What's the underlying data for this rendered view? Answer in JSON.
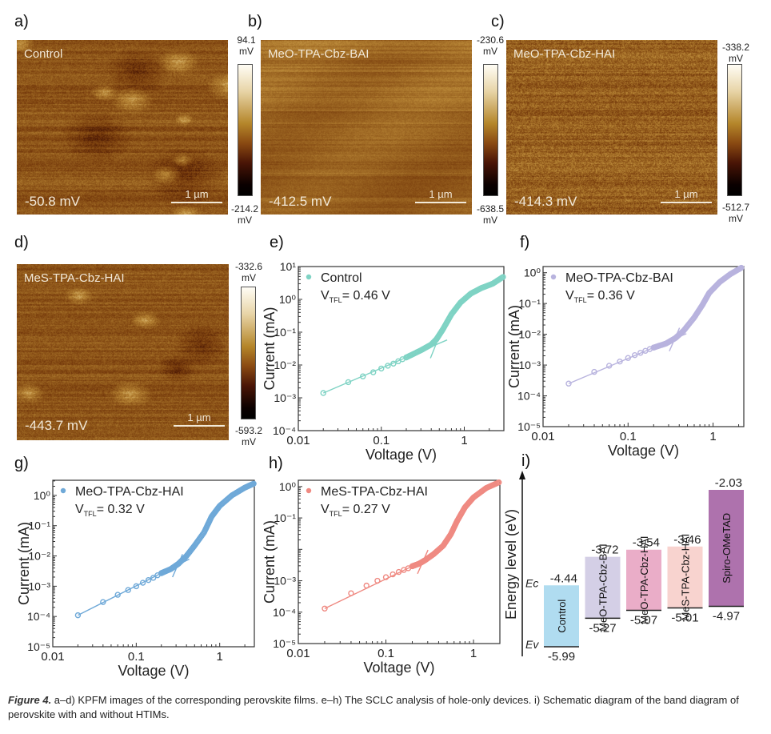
{
  "figure": {
    "caption_title": "Figure 4.",
    "caption_text": " a–d) KPFM images of the corresponding perovskite films. e–h) The SCLC analysis of hole-only devices. i) Schematic diagram of the band diagram of perovskite with and without HTIMs."
  },
  "kpfm": [
    {
      "panel": "a)",
      "sample": "Control",
      "mean_potential": "-50.8 mV",
      "scale_bar": "1 µm",
      "cbar_max": "94.1",
      "cbar_min": "-214.2",
      "unit": "mV"
    },
    {
      "panel": "b)",
      "sample": "MeO-TPA-Cbz-BAI",
      "mean_potential": "-412.5 mV",
      "scale_bar": "1 µm",
      "cbar_max": "-230.6",
      "cbar_min": "-638.5",
      "unit": "mV"
    },
    {
      "panel": "c)",
      "sample": "MeO-TPA-Cbz-HAI",
      "mean_potential": "-414.3 mV",
      "scale_bar": "1 µm",
      "cbar_max": "-338.2",
      "cbar_min": "-512.7",
      "unit": "mV"
    },
    {
      "panel": "d)",
      "sample": "MeS-TPA-Cbz-HAI",
      "mean_potential": "-443.7 mV",
      "scale_bar": "1 µm",
      "cbar_max": "-332.6",
      "cbar_min": "-593.2",
      "unit": "mV"
    }
  ],
  "chart_data": [
    {
      "panel": "e)",
      "type": "scatter",
      "scale": "log-log",
      "legend": "Control",
      "vtfl_label": "V",
      "vtfl_sub": "TFL",
      "vtfl_value": "= 0.46 V",
      "color": "#7fd3c4",
      "xlabel": "Voltage (V)",
      "ylabel": "Current (mA)",
      "xlim": [
        0.01,
        3
      ],
      "ylim_exp": [
        -4,
        1
      ],
      "xticks": [
        "0.01",
        "0.1",
        "1"
      ],
      "yticks_exp": [
        -4,
        -3,
        -2,
        -1,
        0,
        1
      ],
      "ohmic_points": {
        "x": [
          0.02,
          0.04,
          0.06,
          0.08,
          0.1,
          0.12,
          0.14,
          0.16,
          0.18,
          0.2
        ],
        "y": [
          0.0014,
          0.003,
          0.0045,
          0.006,
          0.0078,
          0.0095,
          0.011,
          0.013,
          0.015,
          0.017
        ]
      },
      "curve": {
        "x": [
          0.2,
          0.3,
          0.4,
          0.46,
          0.55,
          0.7,
          0.9,
          1.2,
          1.6,
          2.2,
          3.0
        ],
        "y": [
          0.017,
          0.028,
          0.042,
          0.06,
          0.12,
          0.35,
          0.8,
          1.5,
          2.2,
          3.0,
          5.0
        ]
      },
      "vtfl": 0.46
    },
    {
      "panel": "f)",
      "type": "scatter",
      "scale": "log-log",
      "legend": "MeO-TPA-Cbz-BAI",
      "vtfl_label": "V",
      "vtfl_sub": "TFL",
      "vtfl_value": "= 0.36 V",
      "color": "#b8b3de",
      "xlabel": "Voltage (V)",
      "ylabel": "Current (mA)",
      "xlim": [
        0.01,
        2.3
      ],
      "ylim_exp": [
        -5,
        0.2
      ],
      "xticks": [
        "0.01",
        "0.1",
        "1"
      ],
      "yticks_exp": [
        -5,
        -4,
        -3,
        -2,
        -1,
        0
      ],
      "ohmic_points": {
        "x": [
          0.02,
          0.04,
          0.06,
          0.08,
          0.1,
          0.12,
          0.14,
          0.16,
          0.18,
          0.2
        ],
        "y": [
          0.00025,
          0.0006,
          0.00095,
          0.0013,
          0.0017,
          0.0021,
          0.0025,
          0.0029,
          0.0033,
          0.0037
        ]
      },
      "curve": {
        "x": [
          0.2,
          0.28,
          0.36,
          0.45,
          0.6,
          0.75,
          0.9,
          1.2,
          1.6,
          2.2
        ],
        "y": [
          0.0037,
          0.005,
          0.0075,
          0.013,
          0.035,
          0.09,
          0.22,
          0.5,
          0.9,
          1.5
        ]
      },
      "vtfl": 0.36
    },
    {
      "panel": "g)",
      "type": "scatter",
      "scale": "log-log",
      "legend": "MeO-TPA-Cbz-HAI",
      "vtfl_label": "V",
      "vtfl_sub": "TFL",
      "vtfl_value": "= 0.32 V",
      "color": "#6fa9d8",
      "xlabel": "Voltage (V)",
      "ylabel": "Current (mA)",
      "xlim": [
        0.01,
        2.6
      ],
      "ylim_exp": [
        -5,
        0.5
      ],
      "xticks": [
        "0.01",
        "0.1",
        "1"
      ],
      "yticks_exp": [
        -5,
        -4,
        -3,
        -2,
        -1,
        0
      ],
      "ohmic_points": {
        "x": [
          0.02,
          0.04,
          0.06,
          0.08,
          0.1,
          0.12,
          0.14,
          0.16,
          0.18,
          0.2
        ],
        "y": [
          0.00011,
          0.0003,
          0.00052,
          0.00075,
          0.001,
          0.0013,
          0.0016,
          0.0019,
          0.0023,
          0.0027
        ]
      },
      "curve": {
        "x": [
          0.2,
          0.26,
          0.32,
          0.4,
          0.5,
          0.65,
          0.8,
          1.0,
          1.4,
          2.0,
          2.6
        ],
        "y": [
          0.0027,
          0.0037,
          0.0055,
          0.01,
          0.022,
          0.06,
          0.2,
          0.45,
          1.0,
          1.8,
          2.5
        ]
      },
      "vtfl": 0.32
    },
    {
      "panel": "h)",
      "type": "scatter",
      "scale": "log-log",
      "legend": "MeS-TPA-Cbz-HAI",
      "vtfl_label": "V",
      "vtfl_sub": "TFL",
      "vtfl_value": "= 0.27 V",
      "color": "#ef8a82",
      "xlabel": "Voltage (V)",
      "ylabel": "Current (mA)",
      "xlim": [
        0.01,
        2.0
      ],
      "ylim_exp": [
        -5,
        0.2
      ],
      "xticks": [
        "0.01",
        "0.1",
        "1"
      ],
      "yticks_exp": [
        -5,
        -4,
        -3,
        -1,
        0
      ],
      "ohmic_points": {
        "x": [
          0.02,
          0.04,
          0.06,
          0.08,
          0.1,
          0.12,
          0.14,
          0.16,
          0.18,
          0.2
        ],
        "y": [
          0.00013,
          0.0004,
          0.0007,
          0.001,
          0.0013,
          0.0016,
          0.0019,
          0.0022,
          0.0025,
          0.0029
        ]
      },
      "curve": {
        "x": [
          0.2,
          0.24,
          0.28,
          0.35,
          0.45,
          0.55,
          0.65,
          0.8,
          1.0,
          1.4,
          2.0
        ],
        "y": [
          0.0029,
          0.0035,
          0.0045,
          0.007,
          0.013,
          0.03,
          0.08,
          0.22,
          0.45,
          0.9,
          1.4
        ]
      },
      "vtfl": 0.27
    },
    {
      "panel": "i)",
      "type": "bar",
      "title": "",
      "ylabel": "Energy level (eV)",
      "ec_label": "Ec",
      "ev_label": "Ev",
      "categories": [
        "Control",
        "MeO-TPA-Cbz-BAI",
        "MeO-TPA-Cbz-HAI",
        "MeS-TPA-Cbz-HAI",
        "Spiro-OMeTAD"
      ],
      "top": [
        -4.44,
        -3.72,
        -3.54,
        -3.46,
        -2.03
      ],
      "bottom": [
        -5.99,
        -5.27,
        -5.07,
        -5.01,
        -4.97
      ],
      "top_labels": [
        "-4.44",
        "-3.72",
        "-3.54",
        "-3.46",
        "-2.03"
      ],
      "bottom_labels": [
        "-5.99",
        "-5.27",
        "-5.07",
        "-5.01",
        "-4.97"
      ],
      "colors": [
        "#b0dcf0",
        "#d4cfe6",
        "#eaadc8",
        "#f8d3cf",
        "#ae72ad"
      ]
    }
  ]
}
